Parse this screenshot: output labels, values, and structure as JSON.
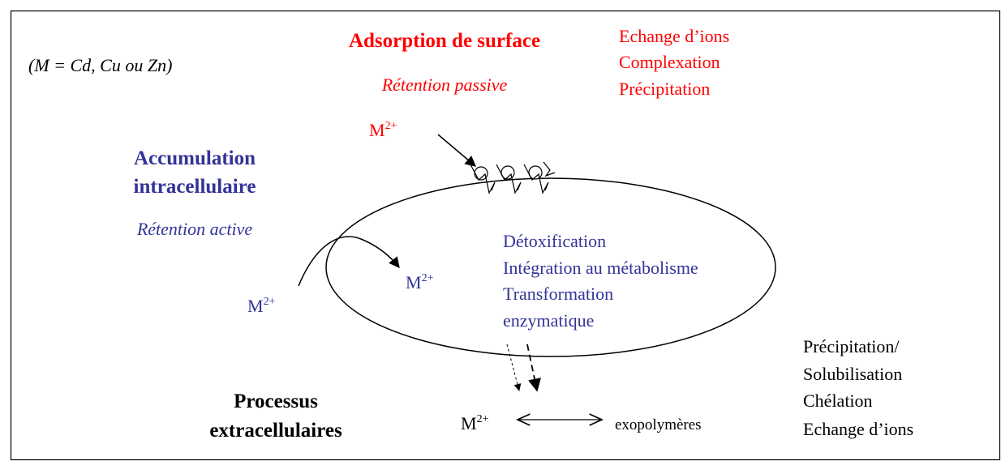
{
  "note": "(M = Cd, Cu ou Zn)",
  "surface": {
    "title": "Adsorption de surface",
    "subtitle": "Rétention passive",
    "mechanisms": [
      "Echange d’ions",
      "Complexation",
      "Précipitation"
    ],
    "ion": {
      "symbol": "M",
      "charge": "2+"
    }
  },
  "intracellular": {
    "title": [
      "Accumulation",
      "intracellulaire"
    ],
    "subtitle": "Rétention active",
    "mechanisms": [
      "Détoxification",
      "Intégration au métabolisme",
      "Transformation",
      "enzymatique"
    ],
    "ion_outside": {
      "symbol": "M",
      "charge": "2+"
    },
    "ion_inside": {
      "symbol": "M",
      "charge": "2+"
    }
  },
  "extracellular": {
    "title": [
      "Processus",
      "extracellulaires"
    ],
    "ion": {
      "symbol": "M",
      "charge": "2+"
    },
    "partner": "exopolymères",
    "mechanisms": [
      "Précipitation/",
      "Solubilisation",
      "Chélation",
      "Echange d’ions"
    ]
  }
}
